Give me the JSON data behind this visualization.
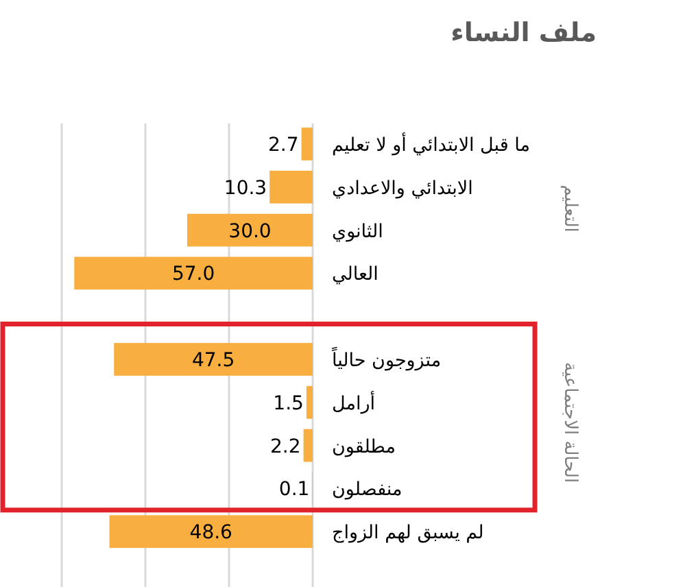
{
  "chart_data": {
    "type": "bar",
    "orientation": "horizontal",
    "title": "ملف النساء",
    "categories": [
      "ما قبل الابتدائي أو لا تعليم",
      "الابتدائي والاعدادي",
      "الثانوي",
      "العالي",
      null,
      "متزوجون حالياً",
      "أرامل",
      "مطلقون",
      "منفصلون",
      "لم يسبق لهم الزواج"
    ],
    "values": [
      2.7,
      10.3,
      30.0,
      57.0,
      null,
      47.5,
      1.5,
      2.2,
      0.1,
      48.6
    ],
    "value_labels": [
      "2.7",
      "10.3",
      "30.0",
      "57.0",
      null,
      "47.5",
      "1.5",
      "2.2",
      "0.1",
      "48.6"
    ],
    "color": "#f9ae40",
    "xlim": [
      60,
      0
    ],
    "xticks": [
      {
        "value": 60,
        "label": null
      },
      {
        "value": 40,
        "label": null
      },
      {
        "value": 20,
        "label": null
      },
      {
        "value": 0,
        "label": null
      }
    ],
    "tick_labels": "y",
    "grid": "x",
    "annotations": [
      "التعليم",
      "الحالة الاجتماعية"
    ]
  }
}
